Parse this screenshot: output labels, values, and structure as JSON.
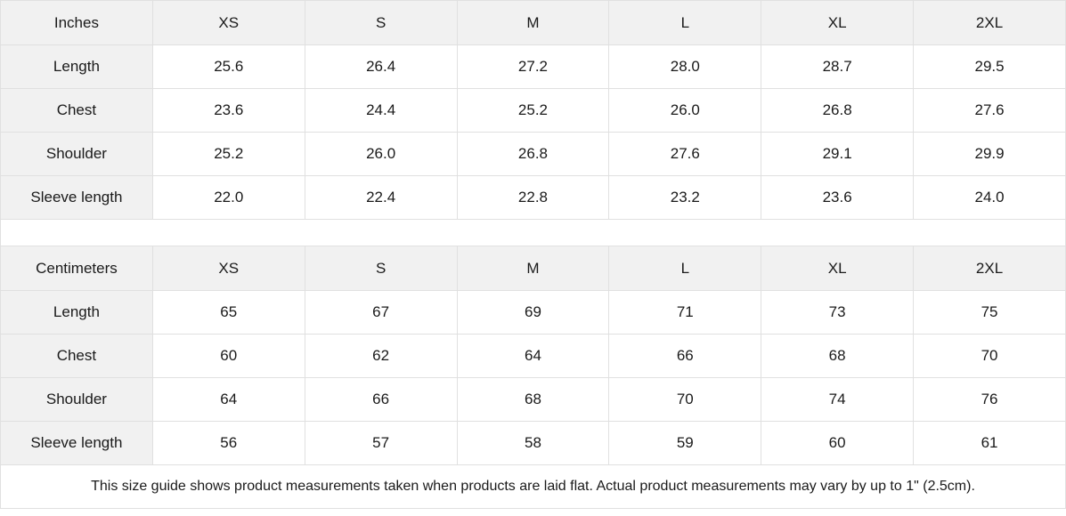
{
  "note": "This size guide shows product measurements taken when products are laid flat.  Actual product measurements may vary by up to 1\" (2.5cm).",
  "colors": {
    "header_background": "#f1f1f1",
    "cell_background": "#ffffff",
    "border": "#e0e0e0",
    "text": "#1a1a1a"
  },
  "chart_data": [
    {
      "type": "table",
      "title": "Inches",
      "columns": [
        "Inches",
        "XS",
        "S",
        "M",
        "L",
        "XL",
        "2XL"
      ],
      "rows": [
        {
          "label": "Length",
          "values": [
            "25.6",
            "26.4",
            "27.2",
            "28.0",
            "28.7",
            "29.5"
          ]
        },
        {
          "label": "Chest",
          "values": [
            "23.6",
            "24.4",
            "25.2",
            "26.0",
            "26.8",
            "27.6"
          ]
        },
        {
          "label": "Shoulder",
          "values": [
            "25.2",
            "26.0",
            "26.8",
            "27.6",
            "29.1",
            "29.9"
          ]
        },
        {
          "label": "Sleeve length",
          "values": [
            "22.0",
            "22.4",
            "22.8",
            "23.2",
            "23.6",
            "24.0"
          ]
        }
      ]
    },
    {
      "type": "table",
      "title": "Centimeters",
      "columns": [
        "Centimeters",
        "XS",
        "S",
        "M",
        "L",
        "XL",
        "2XL"
      ],
      "rows": [
        {
          "label": "Length",
          "values": [
            "65",
            "67",
            "69",
            "71",
            "73",
            "75"
          ]
        },
        {
          "label": "Chest",
          "values": [
            "60",
            "62",
            "64",
            "66",
            "68",
            "70"
          ]
        },
        {
          "label": "Shoulder",
          "values": [
            "64",
            "66",
            "68",
            "70",
            "74",
            "76"
          ]
        },
        {
          "label": "Sleeve length",
          "values": [
            "56",
            "57",
            "58",
            "59",
            "60",
            "61"
          ]
        }
      ]
    }
  ]
}
